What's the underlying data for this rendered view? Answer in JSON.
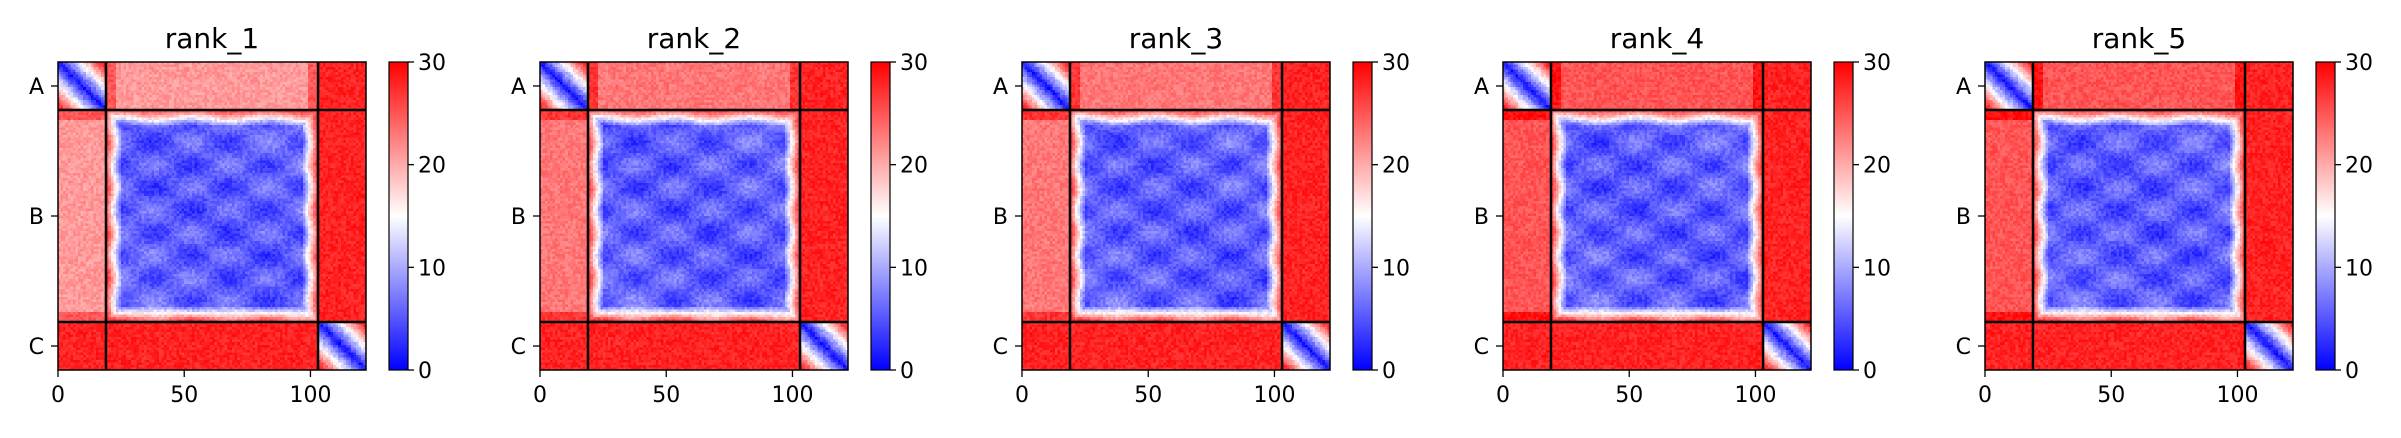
{
  "chart_data": {
    "type": "heatmap",
    "colormap": {
      "name": "bwr",
      "low": "#0000ff",
      "mid": "#ffffff",
      "high": "#ff0000",
      "vmin": 0,
      "vmax": 30
    },
    "colorbar_ticks": [
      "0",
      "10",
      "20",
      "30"
    ],
    "x_ticks": [
      {
        "value": 0,
        "label": "0"
      },
      {
        "value": 50,
        "label": "50"
      },
      {
        "value": 100,
        "label": "100"
      }
    ],
    "xlim": [
      0,
      122
    ],
    "chain_boundaries": [
      19,
      103
    ],
    "chains": [
      {
        "label": "A",
        "start": 0,
        "end": 19
      },
      {
        "label": "B",
        "start": 19,
        "end": 103
      },
      {
        "label": "C",
        "start": 103,
        "end": 122
      }
    ],
    "panels": [
      {
        "title": "rank_1",
        "AB_inter": 21,
        "AC_inter": 28,
        "BC_inter": 28,
        "B_domain": 5
      },
      {
        "title": "rank_2",
        "AB_inter": 23,
        "AC_inter": 28,
        "BC_inter": 28,
        "B_domain": 5
      },
      {
        "title": "rank_3",
        "AB_inter": 23,
        "AC_inter": 28,
        "BC_inter": 28,
        "B_domain": 5
      },
      {
        "title": "rank_4",
        "AB_inter": 25,
        "AC_inter": 28,
        "BC_inter": 28,
        "B_domain": 5
      },
      {
        "title": "rank_5",
        "AB_inter": 25,
        "AC_inter": 28,
        "BC_inter": 28,
        "B_domain": 5
      }
    ]
  }
}
